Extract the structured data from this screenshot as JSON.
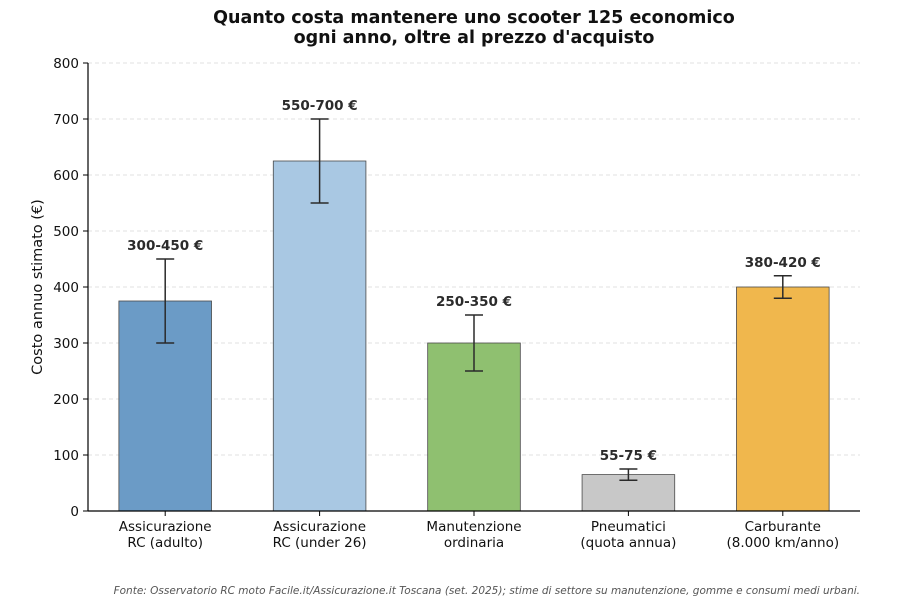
{
  "title_line1": "Quanto costa mantenere uno scooter 125 economico",
  "title_line2": "ogni anno, oltre al prezzo d'acquisto",
  "source": "Fonte: Osservatorio RC moto Facile.it/Assicurazione.it Toscana (set. 2025); stime di settore su manutenzione, gomme e consumi medi urbani.",
  "chart_data": {
    "type": "bar",
    "title": "Quanto costa mantenere uno scooter 125 economico ogni anno, oltre al prezzo d'acquisto",
    "xlabel": "",
    "ylabel": "Costo annuo stimato (€)",
    "ylim": [
      0,
      800
    ],
    "yticks": [
      0,
      100,
      200,
      300,
      400,
      500,
      600,
      700,
      800
    ],
    "grid": "horizontal dashed",
    "categories": [
      [
        "Assicurazione",
        "RC (adulto)"
      ],
      [
        "Assicurazione",
        "RC (under 26)"
      ],
      [
        "Manutenzione",
        "ordinaria"
      ],
      [
        "Pneumatici",
        "(quota annua)"
      ],
      [
        "Carburante",
        "(8.000 km/anno)"
      ]
    ],
    "values": [
      375,
      625,
      300,
      65,
      400
    ],
    "error_low": [
      300,
      550,
      250,
      55,
      380
    ],
    "error_high": [
      450,
      700,
      350,
      75,
      420
    ],
    "bar_labels": [
      "300-450 €",
      "550-700 €",
      "250-350 €",
      "55-75 €",
      "380-420 €"
    ],
    "colors": [
      "#6b9bc6",
      "#a9c8e3",
      "#8fc070",
      "#c8c8c8",
      "#f0b74d"
    ]
  }
}
